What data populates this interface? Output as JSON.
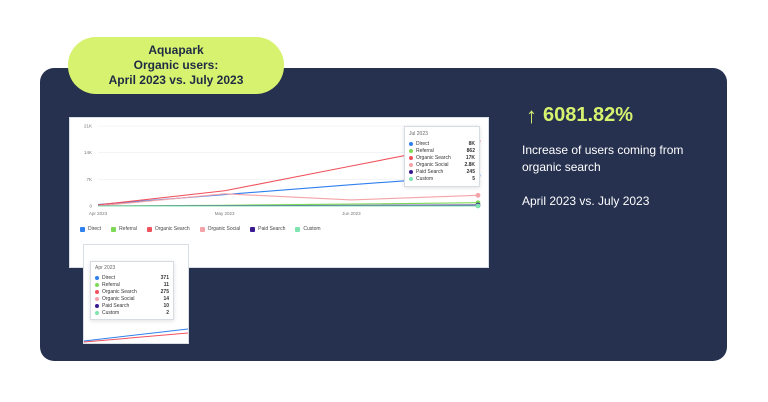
{
  "pill": {
    "line1": "Aquapark",
    "line2": "Organic users:",
    "line3": "April 2023 vs. July 2023"
  },
  "metric": {
    "arrow_icon": "arrow-up-icon",
    "value": "6081.82%",
    "description": "Increase of users coming from organic search",
    "period": "April 2023 vs. July 2023"
  },
  "colors": {
    "card_bg": "#263150",
    "accent": "#d6f26e",
    "direct": "#2f80ed",
    "referral": "#7ed957",
    "organic_search": "#f0525d",
    "organic_social": "#f4a3a8",
    "paid_search": "#3b1a8f",
    "custom": "#7fe3b0"
  },
  "chart_main": {
    "y_ticks": [
      "21K",
      "14K",
      "7K",
      "0"
    ],
    "x_ticks": [
      "Apr 2023",
      "May 2023",
      "Jun 2023"
    ],
    "legend": [
      "Direct",
      "Referral",
      "Organic Search",
      "Organic Social",
      "Paid Search",
      "Custom"
    ],
    "tooltip": {
      "title": "Jul 2023",
      "rows": [
        {
          "label": "Direct",
          "value": "8K"
        },
        {
          "label": "Referral",
          "value": "862"
        },
        {
          "label": "Organic Search",
          "value": "17K"
        },
        {
          "label": "Organic Social",
          "value": "2.8K"
        },
        {
          "label": "Paid Search",
          "value": "245"
        },
        {
          "label": "Custom",
          "value": "5"
        }
      ]
    }
  },
  "chart_inset": {
    "tooltip": {
      "title": "Apr 2023",
      "rows": [
        {
          "label": "Direct",
          "value": "371"
        },
        {
          "label": "Referral",
          "value": "11"
        },
        {
          "label": "Organic Search",
          "value": "275"
        },
        {
          "label": "Organic Social",
          "value": "14"
        },
        {
          "label": "Paid Search",
          "value": "10"
        },
        {
          "label": "Custom",
          "value": "2"
        }
      ]
    }
  },
  "chart_data": {
    "type": "line",
    "x": [
      "Apr 2023",
      "May 2023",
      "Jun 2023",
      "Jul 2023"
    ],
    "ylim": [
      0,
      21000
    ],
    "series": [
      {
        "name": "Direct",
        "values": [
          371,
          3000,
          5600,
          8000
        ]
      },
      {
        "name": "Referral",
        "values": [
          11,
          200,
          500,
          862
        ]
      },
      {
        "name": "Organic Search",
        "values": [
          275,
          4000,
          10500,
          17000
        ]
      },
      {
        "name": "Organic Social",
        "values": [
          14,
          3200,
          1600,
          2800
        ]
      },
      {
        "name": "Paid Search",
        "values": [
          10,
          80,
          150,
          245
        ]
      },
      {
        "name": "Custom",
        "values": [
          2,
          3,
          4,
          5
        ]
      }
    ]
  }
}
